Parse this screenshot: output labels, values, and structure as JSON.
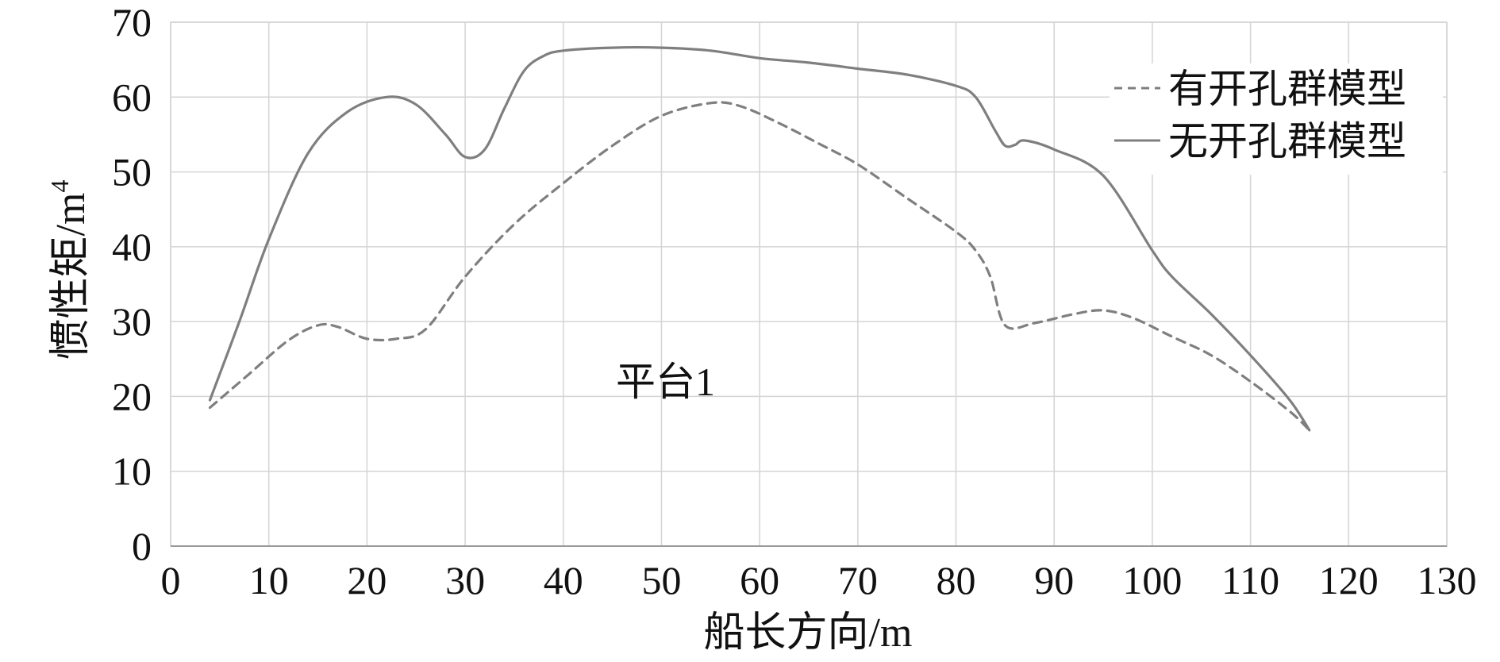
{
  "chart_data": {
    "type": "line",
    "title": "",
    "xlabel": "船长方向/m",
    "ylabel": "惯性矩/m",
    "ylabel_sup": "4",
    "xlim": [
      0,
      130
    ],
    "ylim": [
      0,
      70
    ],
    "x_ticks": [
      0,
      10,
      20,
      30,
      40,
      50,
      60,
      70,
      80,
      90,
      100,
      110,
      120,
      130
    ],
    "y_ticks": [
      0,
      10,
      20,
      30,
      40,
      50,
      60,
      70
    ],
    "grid": true,
    "legend_position": "top-right",
    "annotation": "平台1",
    "series": [
      {
        "name": "有开孔群模型",
        "style": "dashed",
        "color": "#7f7f7f",
        "x": [
          4,
          8,
          12,
          15,
          17,
          20,
          23,
          26,
          30,
          35,
          40,
          45,
          50,
          55,
          58,
          62,
          66,
          70,
          75,
          80,
          82,
          83.5,
          85,
          88,
          92,
          95,
          98,
          102,
          106,
          110,
          114,
          116
        ],
        "y": [
          18.5,
          23,
          27.5,
          29.5,
          29.3,
          27.7,
          27.7,
          29,
          36,
          43,
          48.5,
          53.5,
          57.5,
          59.2,
          58.8,
          56.5,
          53.8,
          51,
          46.5,
          42,
          39.5,
          36,
          29.5,
          29.8,
          31,
          31.5,
          30.5,
          28,
          25.5,
          22,
          18,
          15.5
        ]
      },
      {
        "name": "无开孔群模型",
        "style": "solid",
        "color": "#7f7f7f",
        "x": [
          4,
          7,
          10,
          14,
          18,
          22,
          25,
          28,
          30,
          32,
          34,
          36,
          38,
          40,
          45,
          50,
          55,
          60,
          65,
          70,
          75,
          80,
          82,
          84,
          85,
          86,
          87,
          90,
          95,
          100,
          102,
          106,
          110,
          114,
          116
        ],
        "y": [
          19.5,
          30,
          41,
          52.5,
          58,
          60,
          59,
          55,
          52,
          53,
          58.5,
          63.5,
          65.5,
          66.2,
          66.6,
          66.6,
          66.2,
          65.2,
          64.6,
          63.8,
          63,
          61.5,
          60,
          55.5,
          53.5,
          53.6,
          54.2,
          53,
          49.5,
          39.5,
          36,
          31,
          25.5,
          19.5,
          15.5
        ]
      }
    ]
  }
}
